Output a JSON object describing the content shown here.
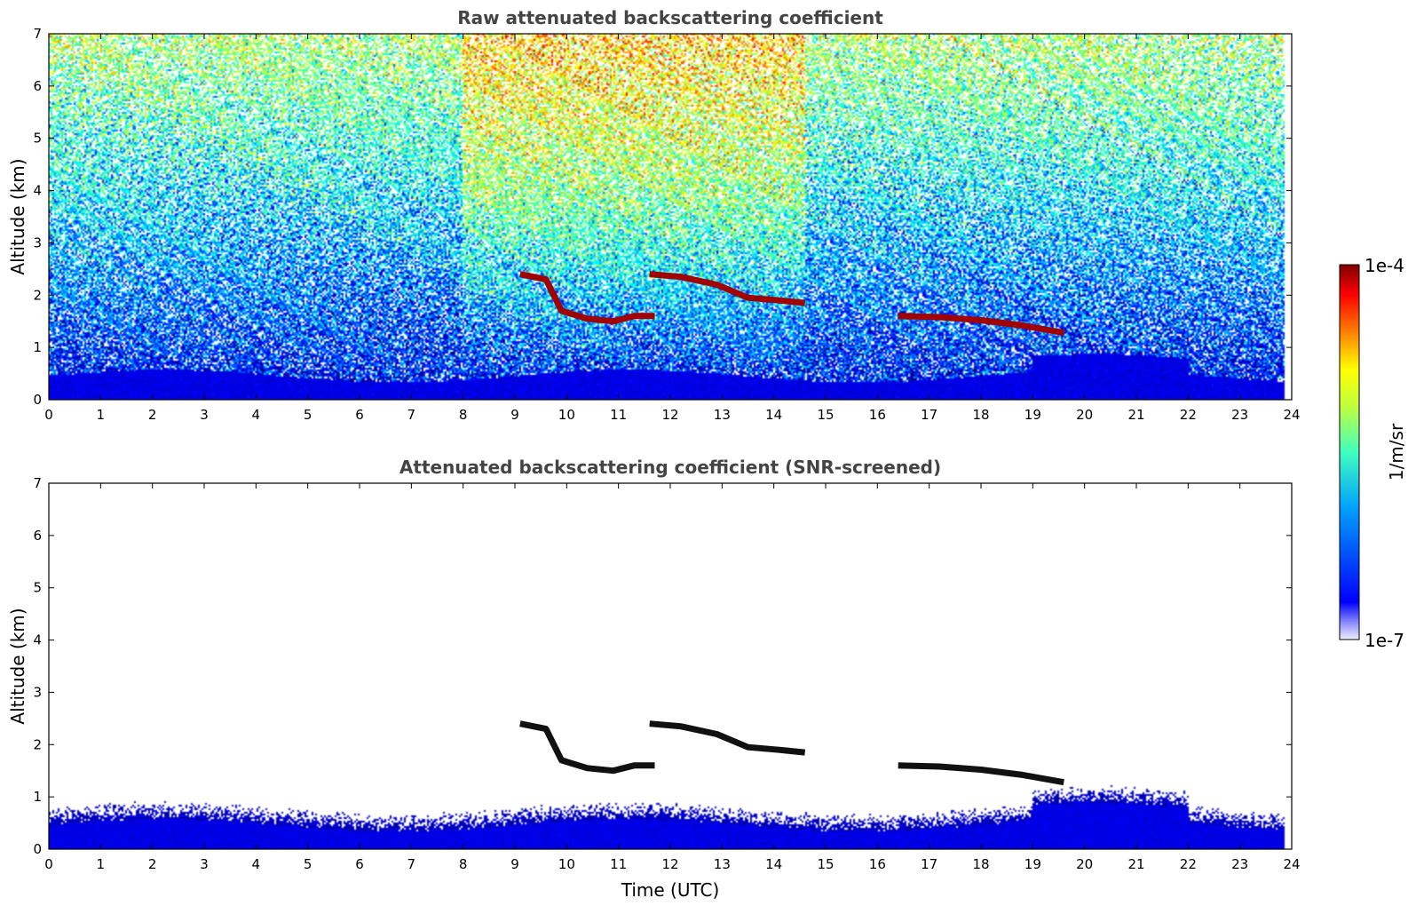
{
  "chart_data": [
    {
      "type": "heatmap",
      "title": "Raw attenuated backscattering coefficient",
      "xlabel": "",
      "ylabel": "Altitude (km)",
      "xlim": [
        0,
        24
      ],
      "ylim": [
        0,
        7
      ],
      "xticks": [
        "0",
        "1",
        "2",
        "3",
        "4",
        "5",
        "6",
        "7",
        "8",
        "9",
        "10",
        "11",
        "12",
        "13",
        "14",
        "15",
        "16",
        "17",
        "18",
        "19",
        "20",
        "21",
        "22",
        "23",
        "24"
      ],
      "yticks": [
        "0",
        "1",
        "2",
        "3",
        "4",
        "5",
        "6",
        "7"
      ],
      "data_extent_hours": [
        0,
        23.85
      ],
      "features": [
        {
          "kind": "cloud_layer",
          "t": [
            9.1,
            9.6,
            9.9,
            10.4,
            10.9,
            11.3,
            11.7
          ],
          "z": [
            2.4,
            2.3,
            1.7,
            1.55,
            1.5,
            1.6,
            1.6
          ],
          "level": 1.0
        },
        {
          "kind": "cloud_layer",
          "t": [
            11.6,
            12.2,
            12.9,
            13.5,
            14.1,
            14.6
          ],
          "z": [
            2.4,
            2.35,
            2.2,
            1.95,
            1.9,
            1.85
          ],
          "level": 1.0
        },
        {
          "kind": "cloud_layer",
          "t": [
            16.4,
            17.2,
            18.0,
            18.8,
            19.6
          ],
          "z": [
            1.6,
            1.58,
            1.52,
            1.42,
            1.28
          ],
          "level": 1.0
        }
      ]
    },
    {
      "type": "heatmap",
      "title": "Attenuated backscattering coefficient (SNR-screened)",
      "xlabel": "Time (UTC)",
      "ylabel": "Altitude (km)",
      "xlim": [
        0,
        24
      ],
      "ylim": [
        0,
        7
      ],
      "xticks": [
        "0",
        "1",
        "2",
        "3",
        "4",
        "5",
        "6",
        "7",
        "8",
        "9",
        "10",
        "11",
        "12",
        "13",
        "14",
        "15",
        "16",
        "17",
        "18",
        "19",
        "20",
        "21",
        "22",
        "23",
        "24"
      ],
      "yticks": [
        "0",
        "1",
        "2",
        "3",
        "4",
        "5",
        "6",
        "7"
      ],
      "data_extent_hours": [
        0,
        23.85
      ]
    }
  ],
  "colorbar": {
    "label": "1/m/sr",
    "max_label": "1e-4",
    "min_label": "1e-7",
    "scale": "log",
    "colormap": "jet",
    "colors": [
      "#ffffff",
      "#0000ff",
      "#00c8ff",
      "#7fff7f",
      "#ffff00",
      "#ff7f00",
      "#ff0000",
      "#800000"
    ]
  }
}
